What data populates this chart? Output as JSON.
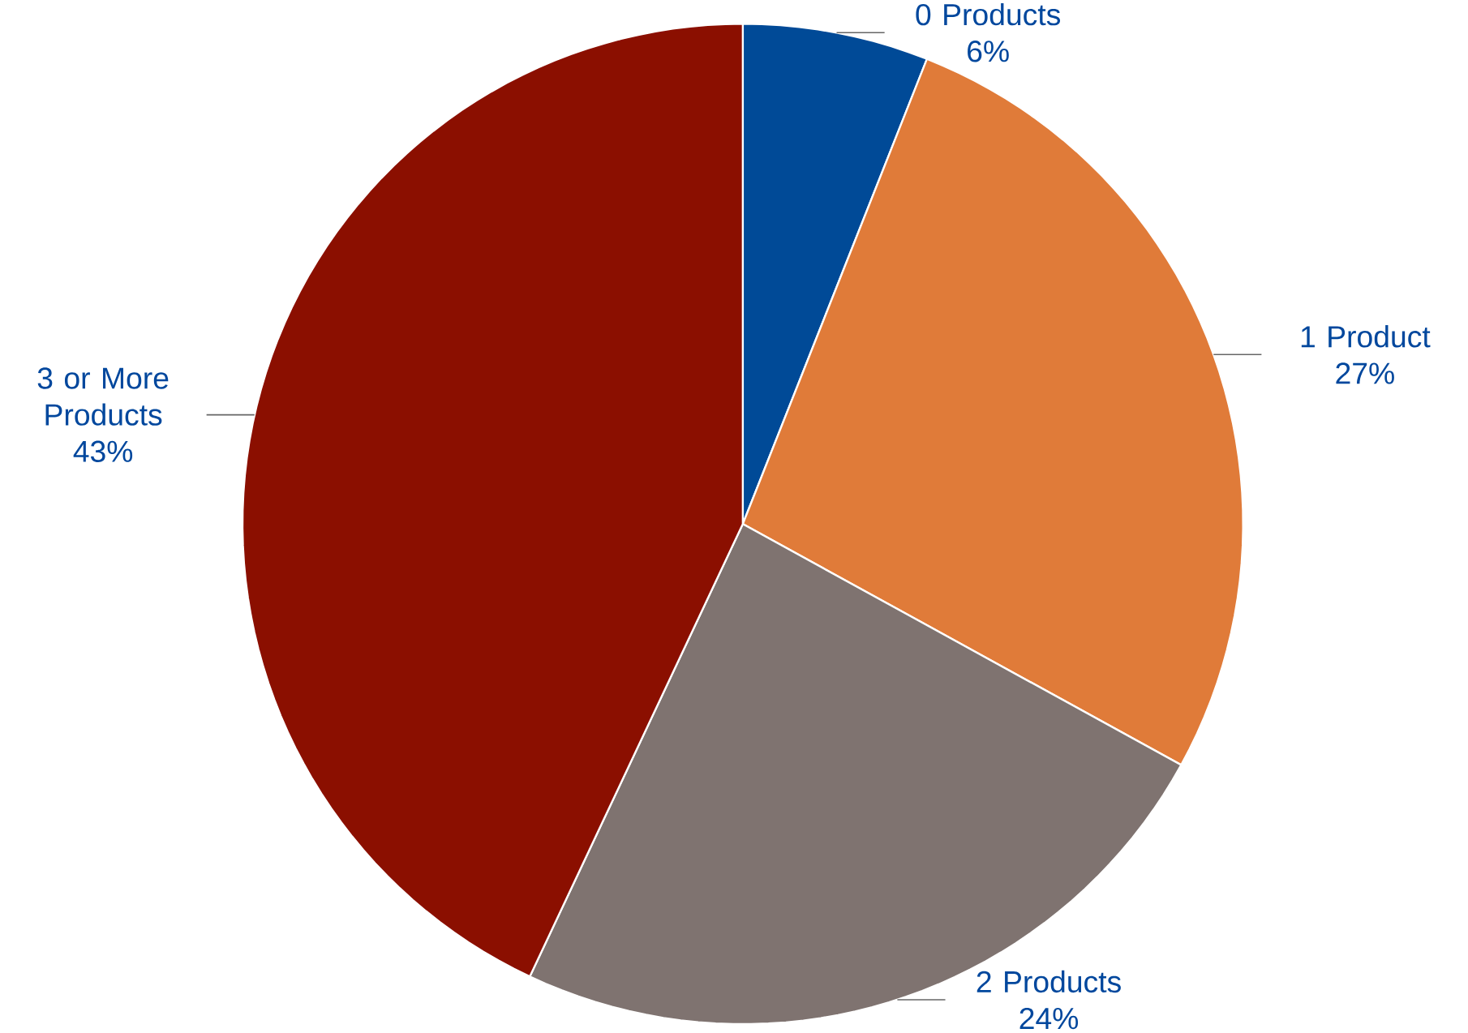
{
  "chart_data": {
    "type": "pie",
    "categories": [
      "0 Products",
      "1 Product",
      "2 Products",
      "3 or More Products"
    ],
    "values": [
      6,
      27,
      24,
      43
    ],
    "value_labels": [
      "6%",
      "27%",
      "24%",
      "43%"
    ],
    "colors": [
      "#004a97",
      "#e07b39",
      "#7f7370",
      "#8b0f00"
    ]
  }
}
